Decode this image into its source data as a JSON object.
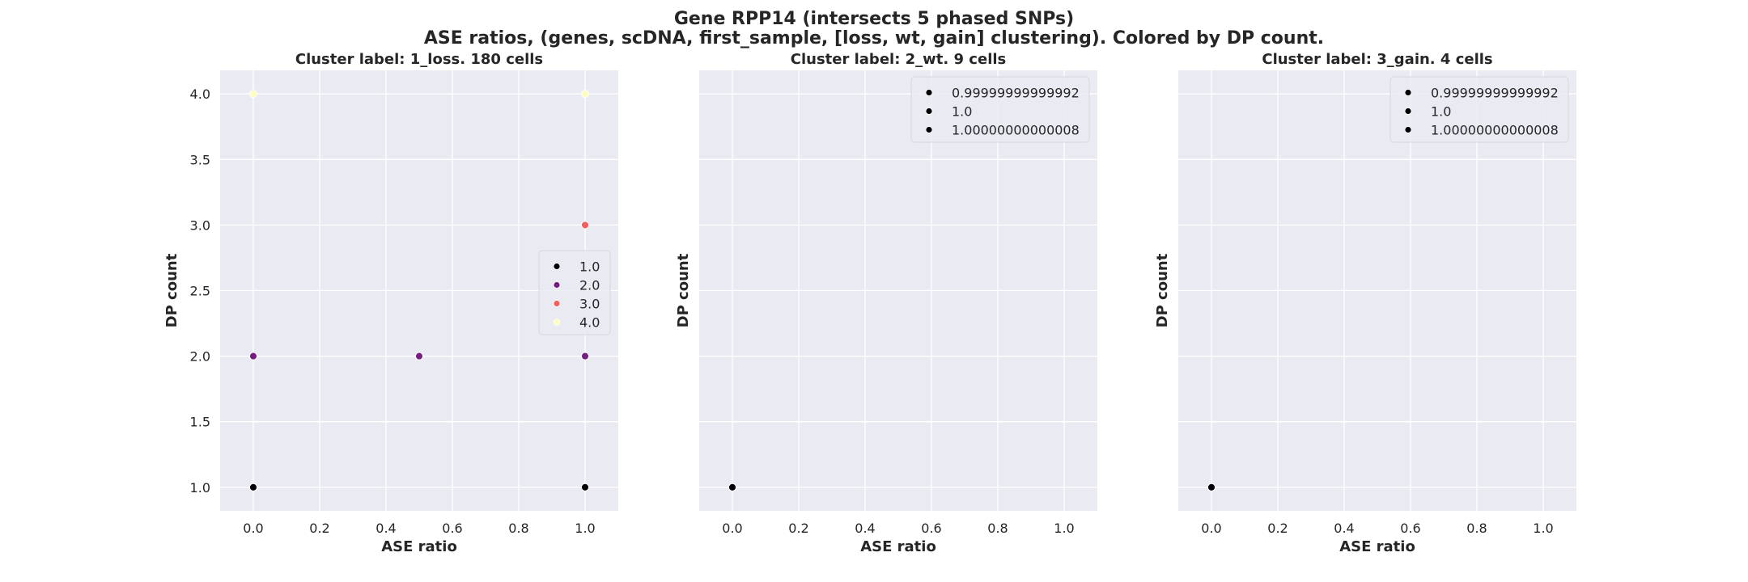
{
  "figure": {
    "title_line1": "Gene RPP14 (intersects 5 phased SNPs)",
    "title_line2": "ASE ratios, (genes, scDNA, first_sample, [loss, wt, gain] clustering). Colored by DP count."
  },
  "chart_data": [
    {
      "type": "scatter",
      "title": "Cluster label: 1_loss. 180 cells",
      "xlabel": "ASE ratio",
      "ylabel": "DP count",
      "xlim": [
        -0.1,
        1.1
      ],
      "ylim": [
        0.82,
        4.18
      ],
      "xticks": [
        0.0,
        0.2,
        0.4,
        0.6,
        0.8,
        1.0
      ],
      "xtick_labels": [
        "0.0",
        "0.2",
        "0.4",
        "0.6",
        "0.8",
        "1.0"
      ],
      "yticks": [
        1.0,
        1.5,
        2.0,
        2.5,
        3.0,
        3.5,
        4.0
      ],
      "ytick_labels": [
        "1.0",
        "1.5",
        "2.0",
        "2.5",
        "3.0",
        "3.5",
        "4.0"
      ],
      "show_ytick_labels": true,
      "grid": true,
      "legend_placement": "center-right",
      "series": [
        {
          "name": "1.0",
          "color": "#000004",
          "x": [
            0.0,
            1.0
          ],
          "y": [
            1.0,
            1.0
          ]
        },
        {
          "name": "2.0",
          "color": "#721f81",
          "x": [
            0.0,
            0.5,
            1.0
          ],
          "y": [
            2.0,
            2.0,
            2.0
          ]
        },
        {
          "name": "3.0",
          "color": "#f1605d",
          "x": [
            1.0
          ],
          "y": [
            3.0
          ]
        },
        {
          "name": "4.0",
          "color": "#fcfdbf",
          "x": [
            0.0,
            1.0
          ],
          "y": [
            4.0,
            4.0
          ]
        }
      ]
    },
    {
      "type": "scatter",
      "title": "Cluster label: 2_wt. 9 cells",
      "xlabel": "ASE ratio",
      "ylabel": "DP count",
      "xlim": [
        -0.1,
        1.1
      ],
      "ylim": [
        0.82,
        4.18
      ],
      "xticks": [
        0.0,
        0.2,
        0.4,
        0.6,
        0.8,
        1.0
      ],
      "xtick_labels": [
        "0.0",
        "0.2",
        "0.4",
        "0.6",
        "0.8",
        "1.0"
      ],
      "yticks": [
        1.0,
        1.5,
        2.0,
        2.5,
        3.0,
        3.5,
        4.0
      ],
      "ytick_labels": [
        "1.0",
        "1.5",
        "2.0",
        "2.5",
        "3.0",
        "3.5",
        "4.0"
      ],
      "show_ytick_labels": false,
      "grid": true,
      "legend_placement": "upper-right",
      "series": [
        {
          "name": "0.99999999999992",
          "color": "#000004",
          "x": [
            0.0
          ],
          "y": [
            1.0
          ]
        },
        {
          "name": "1.0",
          "color": "#000004",
          "x": [],
          "y": []
        },
        {
          "name": "1.00000000000008",
          "color": "#000004",
          "x": [],
          "y": []
        }
      ]
    },
    {
      "type": "scatter",
      "title": "Cluster label: 3_gain. 4 cells",
      "xlabel": "ASE ratio",
      "ylabel": "DP count",
      "xlim": [
        -0.1,
        1.1
      ],
      "ylim": [
        0.82,
        4.18
      ],
      "xticks": [
        0.0,
        0.2,
        0.4,
        0.6,
        0.8,
        1.0
      ],
      "xtick_labels": [
        "0.0",
        "0.2",
        "0.4",
        "0.6",
        "0.8",
        "1.0"
      ],
      "yticks": [
        1.0,
        1.5,
        2.0,
        2.5,
        3.0,
        3.5,
        4.0
      ],
      "ytick_labels": [
        "1.0",
        "1.5",
        "2.0",
        "2.5",
        "3.0",
        "3.5",
        "4.0"
      ],
      "show_ytick_labels": false,
      "grid": true,
      "legend_placement": "upper-right",
      "series": [
        {
          "name": "0.99999999999992",
          "color": "#000004",
          "x": [
            0.0
          ],
          "y": [
            1.0
          ]
        },
        {
          "name": "1.0",
          "color": "#000004",
          "x": [],
          "y": []
        },
        {
          "name": "1.00000000000008",
          "color": "#000004",
          "x": [],
          "y": []
        }
      ]
    }
  ]
}
